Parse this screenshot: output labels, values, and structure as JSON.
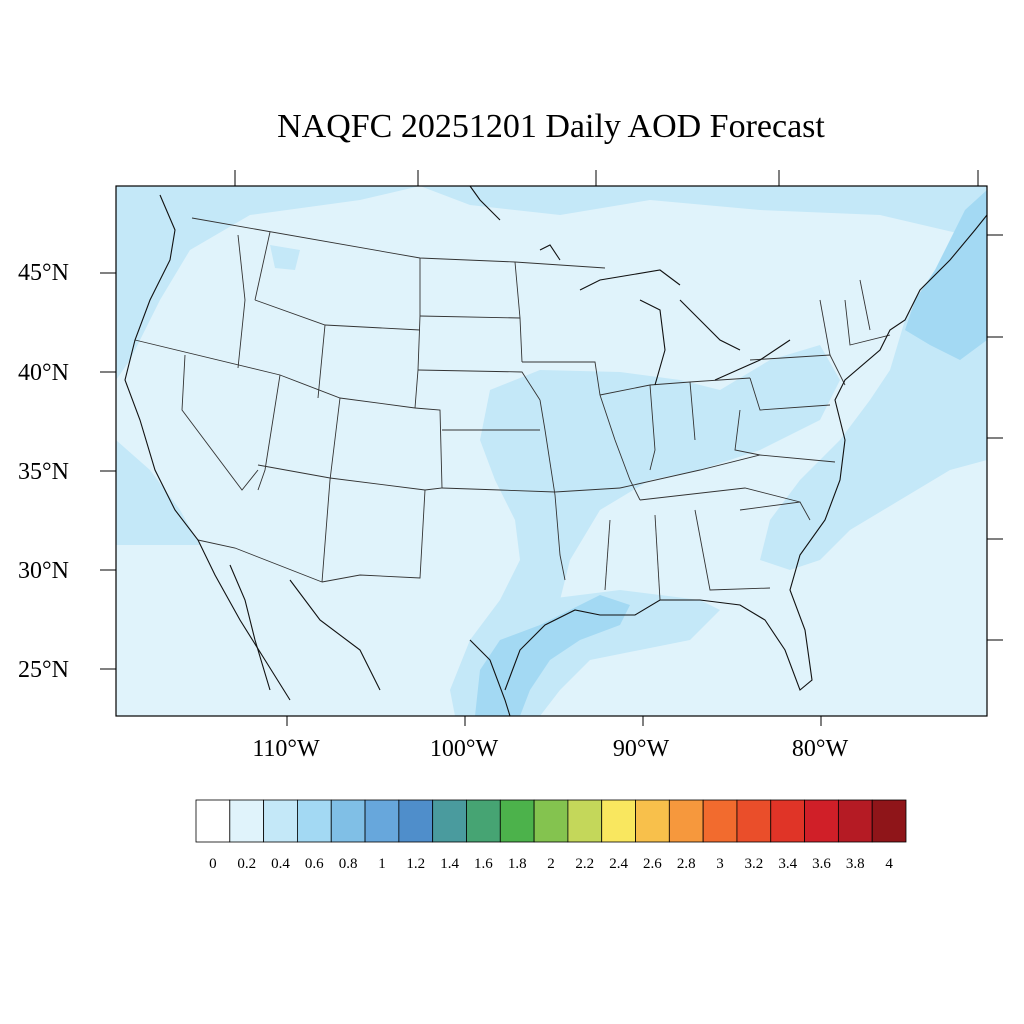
{
  "title": "NAQFC 20251201 Daily AOD Forecast",
  "map": {
    "projection": "lat-lon",
    "lat_labels": [
      "45°N",
      "40°N",
      "35°N",
      "30°N",
      "25°N"
    ],
    "lon_labels": [
      "110°W",
      "100°W",
      "90°W",
      "80°W"
    ],
    "field": "AOD",
    "background_level": "0–0.2",
    "colors": {
      "land_border": "#333333",
      "frame": "#000000"
    }
  },
  "colorbar": {
    "levels": [
      "0",
      "0.2",
      "0.4",
      "0.6",
      "0.8",
      "1",
      "1.2",
      "1.4",
      "1.6",
      "1.8",
      "2",
      "2.2",
      "2.4",
      "2.6",
      "2.8",
      "3",
      "3.2",
      "3.4",
      "3.6",
      "3.8",
      "4"
    ],
    "colors": [
      "#ffffff",
      "#e0f3fb",
      "#c4e8f8",
      "#a3d9f3",
      "#80bfe6",
      "#67a7dc",
      "#4f8ecb",
      "#4a9b9e",
      "#46a473",
      "#4cb24b",
      "#84c34f",
      "#c4d75a",
      "#f9e75f",
      "#f8c04b",
      "#f6983d",
      "#f26b2e",
      "#ea4e2a",
      "#e03427",
      "#d01f28",
      "#b51b24",
      "#8f1519"
    ]
  },
  "chart_data": {
    "type": "heatmap",
    "title": "NAQFC 20251201 Daily AOD Forecast",
    "variable": "AOD",
    "value_levels": [
      0,
      0.2,
      0.4,
      0.6,
      0.8,
      1,
      1.2,
      1.4,
      1.6,
      1.8,
      2,
      2.2,
      2.4,
      2.6,
      2.8,
      3,
      3.2,
      3.4,
      3.6,
      3.8,
      4
    ],
    "xlabel": "",
    "ylabel": "",
    "x_ticks": [
      "110°W",
      "100°W",
      "90°W",
      "80°W"
    ],
    "y_ticks": [
      "45°N",
      "40°N",
      "35°N",
      "30°N",
      "25°N"
    ],
    "dominant_range": [
      0.2,
      0.6
    ]
  }
}
